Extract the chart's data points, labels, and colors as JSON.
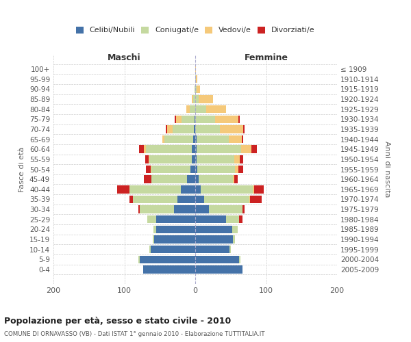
{
  "age_groups_bottom_to_top": [
    "0-4",
    "5-9",
    "10-14",
    "15-19",
    "20-24",
    "25-29",
    "30-34",
    "35-39",
    "40-44",
    "45-49",
    "50-54",
    "55-59",
    "60-64",
    "65-69",
    "70-74",
    "75-79",
    "80-84",
    "85-89",
    "90-94",
    "95-99",
    "100+"
  ],
  "birth_years_bottom_to_top": [
    "2005-2009",
    "2000-2004",
    "1995-1999",
    "1990-1994",
    "1985-1989",
    "1980-1984",
    "1975-1979",
    "1970-1974",
    "1965-1969",
    "1960-1964",
    "1955-1959",
    "1950-1954",
    "1945-1949",
    "1940-1944",
    "1935-1939",
    "1930-1934",
    "1925-1929",
    "1920-1924",
    "1915-1919",
    "1910-1914",
    "≤ 1909"
  ],
  "colors": {
    "celibi": "#4472a8",
    "coniugati": "#c5d9a0",
    "vedovi": "#f5c97a",
    "divorziati": "#cc2222"
  },
  "maschi_celibi": [
    73,
    78,
    63,
    58,
    55,
    55,
    30,
    25,
    20,
    12,
    7,
    5,
    5,
    3,
    2,
    1,
    0,
    0,
    0,
    0,
    0
  ],
  "maschi_coniugati": [
    0,
    2,
    2,
    2,
    4,
    13,
    48,
    63,
    73,
    50,
    55,
    60,
    65,
    40,
    30,
    18,
    8,
    3,
    1,
    0,
    0
  ],
  "maschi_vedovi": [
    0,
    0,
    0,
    0,
    0,
    0,
    0,
    0,
    0,
    0,
    1,
    1,
    2,
    3,
    8,
    8,
    5,
    2,
    0,
    0,
    0
  ],
  "maschi_divorziati": [
    0,
    0,
    0,
    0,
    0,
    0,
    2,
    5,
    17,
    10,
    7,
    5,
    7,
    0,
    2,
    2,
    0,
    0,
    0,
    0,
    0
  ],
  "femmine_celibi": [
    67,
    62,
    48,
    53,
    52,
    43,
    19,
    13,
    8,
    5,
    3,
    2,
    2,
    2,
    0,
    0,
    0,
    0,
    0,
    0,
    0
  ],
  "femmine_coniugati": [
    0,
    2,
    2,
    3,
    8,
    19,
    48,
    63,
    73,
    48,
    53,
    53,
    63,
    45,
    35,
    28,
    15,
    5,
    2,
    1,
    0
  ],
  "femmine_vedovi": [
    0,
    0,
    0,
    0,
    0,
    0,
    0,
    1,
    2,
    2,
    5,
    8,
    14,
    19,
    33,
    33,
    28,
    20,
    5,
    2,
    1
  ],
  "femmine_divorziati": [
    0,
    0,
    0,
    0,
    0,
    5,
    3,
    17,
    14,
    5,
    7,
    5,
    8,
    2,
    2,
    2,
    0,
    0,
    0,
    0,
    0
  ],
  "title": "Popolazione per età, sesso e stato civile - 2010",
  "subtitle": "COMUNE DI ORNAVASSO (VB) - Dati ISTAT 1° gennaio 2010 - Elaborazione TUTTITALIA.IT",
  "label_maschi": "Maschi",
  "label_femmine": "Femmine",
  "ylabel_left": "Fasce di età",
  "ylabel_right": "Anni di nascita",
  "xlim": 200,
  "legend_labels": [
    "Celibi/Nubili",
    "Coniugati/e",
    "Vedovi/e",
    "Divorziati/e"
  ],
  "background_color": "#ffffff",
  "grid_color": "#cccccc"
}
